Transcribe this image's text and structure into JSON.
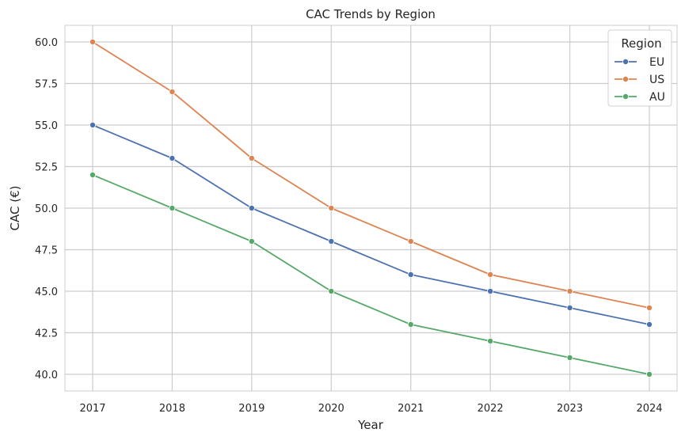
{
  "chart_data": {
    "type": "line",
    "title": "CAC Trends by Region",
    "xlabel": "Year",
    "ylabel": "CAC (€)",
    "x": [
      2017,
      2018,
      2019,
      2020,
      2021,
      2022,
      2023,
      2024
    ],
    "ylim": [
      39.0,
      61.0
    ],
    "yticks": [
      "40.0",
      "42.5",
      "45.0",
      "47.5",
      "50.0",
      "52.5",
      "55.0",
      "57.5",
      "60.0"
    ],
    "grid": true,
    "legend": {
      "title": "Region",
      "position": "top-right"
    },
    "series": [
      {
        "name": "EU",
        "color": "#4c72b0",
        "values": [
          55,
          53,
          50,
          48,
          46,
          45,
          44,
          43
        ]
      },
      {
        "name": "US",
        "color": "#dd8452",
        "values": [
          60,
          57,
          53,
          50,
          48,
          46,
          45,
          44
        ]
      },
      {
        "name": "AU",
        "color": "#55a868",
        "values": [
          52,
          50,
          48,
          45,
          43,
          42,
          41,
          40
        ]
      }
    ]
  }
}
